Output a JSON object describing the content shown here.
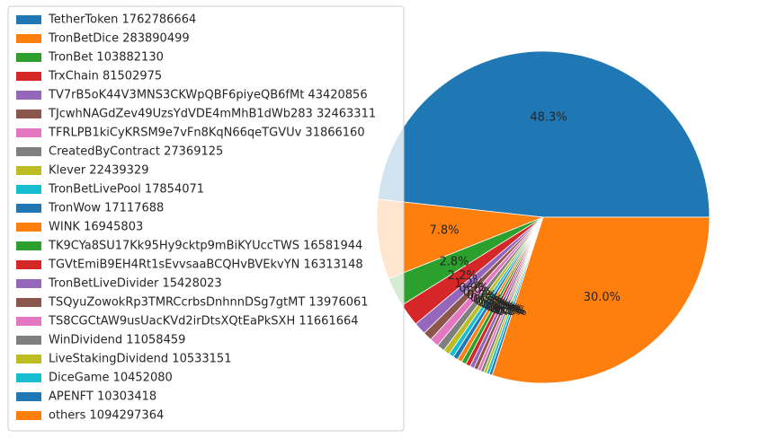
{
  "chart_data": {
    "type": "pie",
    "title": "",
    "legend_position": "upper-left, overlapping the pie",
    "slices": [
      {
        "label": "TetherToken 1762786664",
        "value": 1762786664,
        "pct_label": "48.3%",
        "color": "#1f77b4"
      },
      {
        "label": "TronBetDice 283890499",
        "value": 283890499,
        "pct_label": "7.8%",
        "color": "#ff7f0e"
      },
      {
        "label": "TronBet 103882130",
        "value": 103882130,
        "pct_label": "2.8%",
        "color": "#2ca02c"
      },
      {
        "label": "TrxChain 81502975",
        "value": 81502975,
        "pct_label": "2.2%",
        "color": "#d62728"
      },
      {
        "label": "TV7rB5oK44V3MNS3CKWpQBF6piyeQB6fMt 43420856",
        "value": 43420856,
        "pct_label": "1.2%",
        "color": "#9467bd"
      },
      {
        "label": "TJcwhNAGdZev49UzsYdVDE4mMhB1dWb283 32463311",
        "value": 32463311,
        "pct_label": "0.9%",
        "color": "#8c564b"
      },
      {
        "label": "TFRLPB1kiCyKRSM9e7vFn8KqN66qeTGVUv 31866160",
        "value": 31866160,
        "pct_label": "0.9%",
        "color": "#e377c2"
      },
      {
        "label": "CreatedByContract 27369125",
        "value": 27369125,
        "pct_label": "0.7%",
        "color": "#7f7f7f"
      },
      {
        "label": "Klever 22439329",
        "value": 22439329,
        "pct_label": "0.6%",
        "color": "#bcbd22"
      },
      {
        "label": "TronBetLivePool 17854071",
        "value": 17854071,
        "pct_label": "0.5%",
        "color": "#17becf"
      },
      {
        "label": "TronWow 17117688",
        "value": 17117688,
        "pct_label": "0.5%",
        "color": "#1f77b4"
      },
      {
        "label": "WINK 16945803",
        "value": 16945803,
        "pct_label": "0.5%",
        "color": "#ff7f0e"
      },
      {
        "label": "TK9CYa8SU17Kk95Hy9cktp9mBiKYUccTWS 16581944",
        "value": 16581944,
        "pct_label": "0.5%",
        "color": "#2ca02c"
      },
      {
        "label": "TGVtEmiB9EH4Rt1sEvvsaaBCQHvBVEkvYN 16313148",
        "value": 16313148,
        "pct_label": "0.4%",
        "color": "#d62728"
      },
      {
        "label": "TronBetLiveDivider 15428023",
        "value": 15428023,
        "pct_label": "0.4%",
        "color": "#9467bd"
      },
      {
        "label": "TSQyuZowokRp3TMRCcrbsDnhnnDSg7gtMT 13976061",
        "value": 13976061,
        "pct_label": "0.4%",
        "color": "#8c564b"
      },
      {
        "label": "TS8CGCtAW9usUacKVd2irDtsXQtEaPkSXH 11661664",
        "value": 11661664,
        "pct_label": "0.3%",
        "color": "#e377c2"
      },
      {
        "label": "WinDividend 11058459",
        "value": 11058459,
        "pct_label": "0.3%",
        "color": "#7f7f7f"
      },
      {
        "label": "LiveStakingDividend 10533151",
        "value": 10533151,
        "pct_label": "0.3%",
        "color": "#bcbd22"
      },
      {
        "label": "DiceGame 10452080",
        "value": 10452080,
        "pct_label": "0.3%",
        "color": "#17becf"
      },
      {
        "label": "APENFT 10303418",
        "value": 10303418,
        "pct_label": "0.3%",
        "color": "#1f77b4"
      },
      {
        "label": "others 1094297364",
        "value": 1094297364,
        "pct_label": "30.0%",
        "color": "#ff7f0e"
      }
    ]
  }
}
